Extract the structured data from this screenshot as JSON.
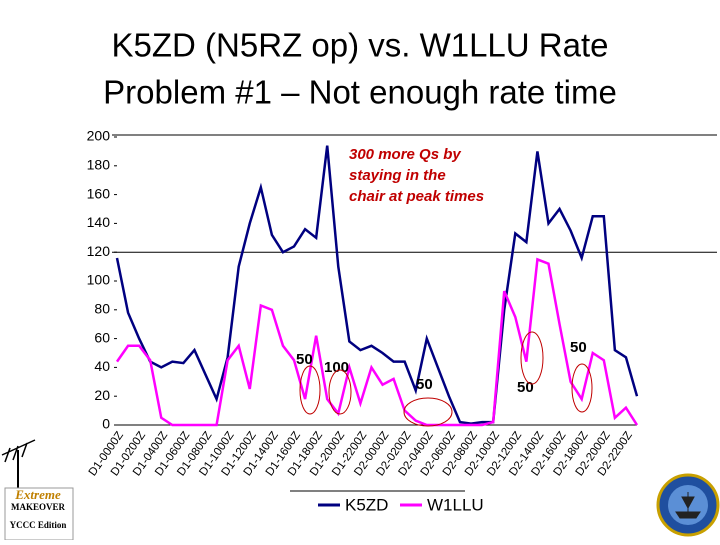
{
  "title": [
    "K5ZD (N5RZ op) vs. W1LLU Rate",
    "Problem #1 – Not enough rate time"
  ],
  "chart_data": {
    "type": "line",
    "categories": [
      "D1-0000Z",
      null,
      "D1-0200Z",
      null,
      "D1-0400Z",
      null,
      "D1-0600Z",
      null,
      "D1-0800Z",
      null,
      "D1-1000Z",
      null,
      "D1-1200Z",
      null,
      "D1-1400Z",
      null,
      "D1-1600Z",
      null,
      "D1-1800Z",
      null,
      "D1-2000Z",
      null,
      "D1-2200Z",
      null,
      "D2-0000Z",
      null,
      "D2-0200Z",
      null,
      "D2-0400Z",
      null,
      "D2-0600Z",
      null,
      "D2-0800Z",
      null,
      "D2-1000Z",
      null,
      "D2-1200Z",
      null,
      "D2-1400Z",
      null,
      "D2-1600Z",
      null,
      "D2-1800Z",
      null,
      "D2-2000Z",
      null,
      "D2-2200Z",
      null
    ],
    "series": [
      {
        "name": "K5ZD",
        "color": "#000080",
        "values": [
          116,
          78,
          60,
          44,
          40,
          44,
          43,
          52,
          35,
          18,
          47,
          110,
          140,
          165,
          132,
          120,
          124,
          136,
          130,
          194,
          110,
          58,
          52,
          55,
          50,
          44,
          44,
          24,
          60,
          40,
          20,
          2,
          1,
          2,
          2,
          80,
          133,
          127,
          190,
          140,
          150,
          135,
          116,
          145,
          145,
          52,
          47,
          20
        ]
      },
      {
        "name": "W1LLU",
        "color": "#ff00ff",
        "values": [
          44,
          55,
          55,
          45,
          5,
          0,
          0,
          0,
          0,
          0,
          45,
          55,
          25,
          83,
          80,
          55,
          45,
          18,
          62,
          18,
          8,
          40,
          15,
          40,
          28,
          32,
          10,
          3,
          0,
          0,
          0,
          0,
          0,
          0,
          2,
          93,
          75,
          44,
          115,
          112,
          70,
          30,
          18,
          50,
          45,
          5,
          12,
          0
        ]
      }
    ],
    "ylim": [
      0,
      200
    ],
    "yticks": [
      0,
      20,
      40,
      60,
      80,
      100,
      120,
      140,
      160,
      180,
      200
    ],
    "hline": 120,
    "annotation": "300 more Qs by staying in the chair at peak times",
    "labels": [
      "50",
      "100",
      "50",
      "50",
      "50"
    ]
  },
  "logo": [
    "Extreme",
    "MAKEOVER",
    "YCCC Edition"
  ]
}
